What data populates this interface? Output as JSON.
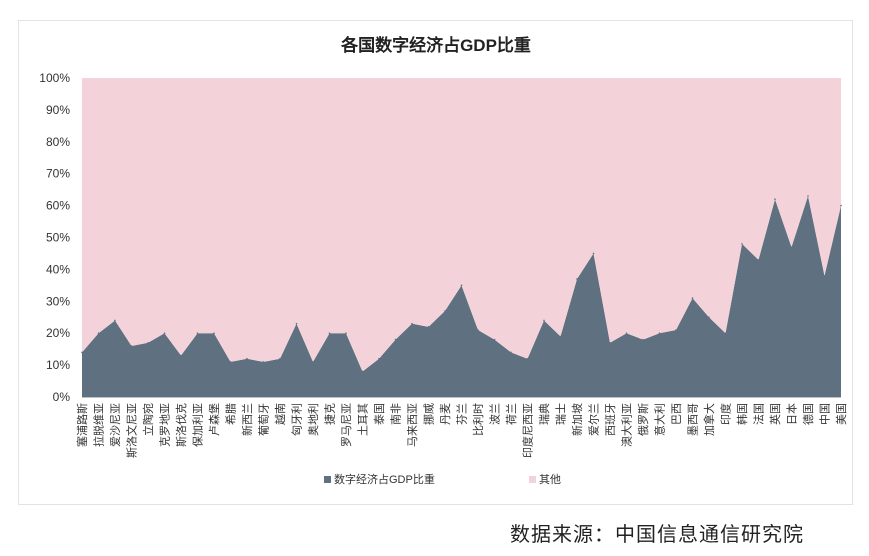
{
  "chart_data": {
    "type": "area",
    "stacked": true,
    "percent": true,
    "title": "各国数字经济占GDP比重",
    "xlabel": "",
    "ylabel": "",
    "ylim": [
      0,
      100
    ],
    "yticks": [
      "0%",
      "10%",
      "20%",
      "30%",
      "40%",
      "50%",
      "60%",
      "70%",
      "80%",
      "90%",
      "100%"
    ],
    "grid": false,
    "legend": "bottom",
    "categories": [
      "塞浦路斯",
      "拉脱维亚",
      "爱沙尼亚",
      "斯洛文尼亚",
      "立陶宛",
      "克罗地亚",
      "斯洛伐克",
      "保加利亚",
      "卢森堡",
      "希腊",
      "新西兰",
      "葡萄牙",
      "越南",
      "匈牙利",
      "奥地利",
      "捷克",
      "罗马尼亚",
      "土耳其",
      "泰国",
      "南非",
      "马来西亚",
      "挪威",
      "丹麦",
      "芬兰",
      "比利时",
      "波兰",
      "荷兰",
      "印度尼西亚",
      "瑞典",
      "瑞士",
      "新加坡",
      "爱尔兰",
      "西班牙",
      "澳大利亚",
      "俄罗斯",
      "意大利",
      "巴西",
      "墨西哥",
      "加拿大",
      "印度",
      "韩国",
      "法国",
      "英国",
      "日本",
      "德国",
      "中国",
      "美国"
    ],
    "series": [
      {
        "name": "数字经济占GDP比重",
        "color": "#5f7080",
        "values": [
          14,
          20,
          24,
          16,
          17,
          20,
          13,
          20,
          20,
          11,
          12,
          11,
          12,
          23,
          11,
          20,
          20,
          8,
          12,
          18,
          23,
          22,
          27,
          35,
          21,
          18,
          14,
          12,
          24,
          19,
          37,
          45,
          17,
          20,
          18,
          20,
          21,
          31,
          25,
          20,
          48,
          43,
          62,
          47,
          63,
          38,
          60
        ]
      },
      {
        "name": "其他",
        "color": "#f3d3d9",
        "values": [
          86,
          80,
          76,
          84,
          83,
          80,
          87,
          80,
          80,
          89,
          88,
          89,
          88,
          77,
          89,
          80,
          80,
          92,
          88,
          82,
          77,
          78,
          73,
          65,
          79,
          82,
          86,
          88,
          76,
          81,
          63,
          55,
          83,
          80,
          82,
          80,
          79,
          69,
          75,
          80,
          52,
          57,
          38,
          53,
          37,
          62,
          40
        ]
      }
    ]
  },
  "source_caption": "数据来源：中国信息通信研究院"
}
